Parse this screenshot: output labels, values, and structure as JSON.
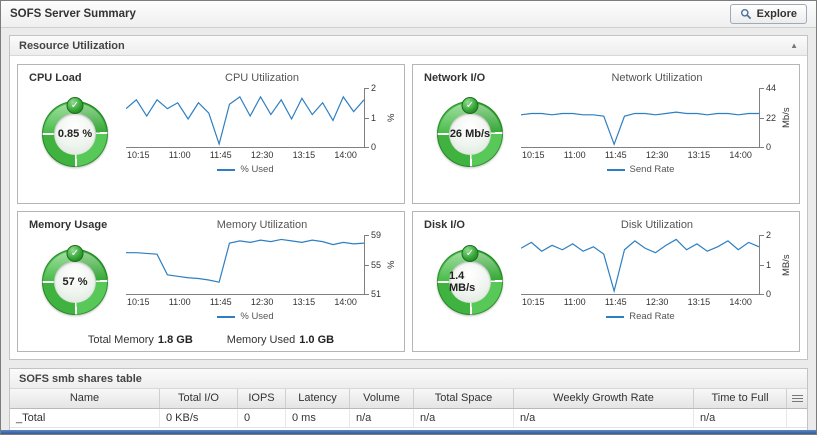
{
  "header": {
    "title": "SOFS Server Summary",
    "explore": "Explore"
  },
  "icons": {
    "ok": "✓",
    "collapse": "▲"
  },
  "resource_panel": {
    "title": "Resource Utilization"
  },
  "quadrants": [
    {
      "label": "CPU Load",
      "gauge_value": "0.85 %"
    },
    {
      "label": "Network I/O",
      "gauge_value": "26 Mb/s"
    },
    {
      "label": "Memory Usage",
      "gauge_value": "57 %"
    },
    {
      "label": "Disk I/O",
      "gauge_value": "1.4 MB/s"
    }
  ],
  "memory_footer": {
    "total_label": "Total Memory",
    "total_value": "1.8 GB",
    "used_label": "Memory Used",
    "used_value": "1.0 GB"
  },
  "shares_table": {
    "title": "SOFS smb shares table",
    "columns": [
      "Name",
      "Total I/O",
      "IOPS",
      "Latency",
      "Volume",
      "Total Space",
      "Weekly Growth Rate",
      "Time to Full"
    ],
    "rows": [
      [
        "_Total",
        "0 KB/s",
        "0",
        "0 ms",
        "n/a",
        "n/a",
        "n/a",
        "n/a"
      ]
    ]
  },
  "chart_data": [
    {
      "type": "line",
      "title": "CPU Utilization",
      "legend": "% Used",
      "ylabel": "%",
      "ylim": [
        0,
        2
      ],
      "yticks": [
        "2",
        "1",
        "0"
      ],
      "xticks": [
        "10:15",
        "11:00",
        "11:45",
        "12:30",
        "13:15",
        "14:00"
      ],
      "line_color": "#2e7fc2",
      "values": [
        1.3,
        1.6,
        1.05,
        1.6,
        1.3,
        1.5,
        0.95,
        1.5,
        1.15,
        0.1,
        1.45,
        1.7,
        1.05,
        1.7,
        1.1,
        1.6,
        0.95,
        1.65,
        1.1,
        1.5,
        0.9,
        1.7,
        1.2,
        1.6
      ]
    },
    {
      "type": "line",
      "title": "Network Utilization",
      "legend": "Send Rate",
      "ylabel": "Mb/s",
      "ylim": [
        0,
        44
      ],
      "yticks": [
        "44",
        "22",
        "0"
      ],
      "xticks": [
        "10:15",
        "11:00",
        "11:45",
        "12:30",
        "13:15",
        "14:00"
      ],
      "line_color": "#2e7fc2",
      "values": [
        24,
        25,
        25,
        24,
        25,
        25,
        24,
        24,
        23,
        2,
        23,
        25,
        25,
        24,
        25,
        26,
        25,
        25,
        24,
        25,
        25,
        24,
        25,
        25
      ]
    },
    {
      "type": "line",
      "title": "Memory Utilization",
      "legend": "% Used",
      "ylabel": "%",
      "ylim": [
        51,
        59
      ],
      "yticks": [
        "59",
        "55",
        "51"
      ],
      "xticks": [
        "10:15",
        "11:00",
        "11:45",
        "12:30",
        "13:15",
        "14:00"
      ],
      "line_color": "#2e7fc2",
      "values": [
        56.6,
        56.6,
        56.5,
        56.4,
        53.6,
        53.4,
        53.2,
        53.1,
        52.9,
        52.6,
        57.9,
        58.2,
        58.0,
        58.3,
        58.1,
        58.4,
        58.2,
        58.0,
        58.3,
        58.1,
        57.7,
        58.0,
        57.8,
        57.9
      ]
    },
    {
      "type": "line",
      "title": "Disk Utilization",
      "legend": "Read Rate",
      "ylabel": "MB/s",
      "ylim": [
        0,
        2
      ],
      "yticks": [
        "2",
        "1",
        "0"
      ],
      "xticks": [
        "10:15",
        "11:00",
        "11:45",
        "12:30",
        "13:15",
        "14:00"
      ],
      "line_color": "#2e7fc2",
      "values": [
        1.55,
        1.75,
        1.45,
        1.65,
        1.5,
        1.7,
        1.45,
        1.6,
        1.35,
        0.1,
        1.5,
        1.8,
        1.55,
        1.4,
        1.65,
        1.85,
        1.5,
        1.7,
        1.45,
        1.6,
        1.8,
        1.5,
        1.75,
        1.6
      ]
    }
  ]
}
